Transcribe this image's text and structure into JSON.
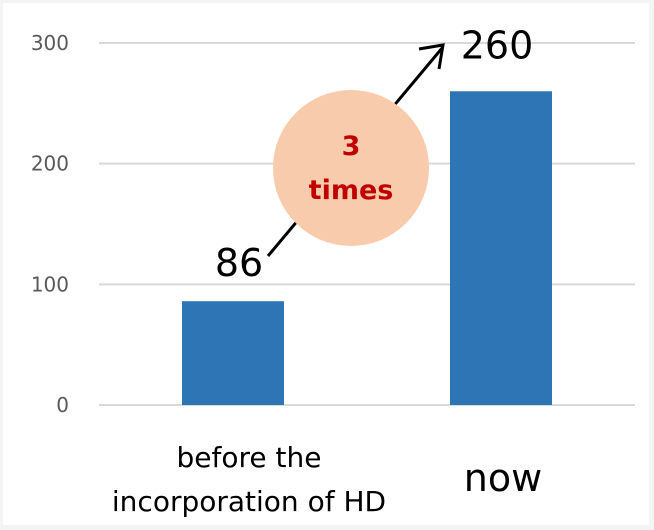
{
  "chart_data": {
    "type": "bar",
    "title": "",
    "xlabel": "",
    "ylabel": "",
    "categories": [
      "before the incorporation of HD",
      "now"
    ],
    "category_lines": [
      [
        "before the",
        "incorporation of HD"
      ],
      [
        "now"
      ]
    ],
    "values": [
      86,
      260
    ],
    "data_labels": [
      "86",
      "260"
    ],
    "ylim": [
      0,
      300
    ],
    "yticks": [
      0,
      100,
      200,
      300
    ],
    "ytick_labels": [
      "0",
      "100",
      "200",
      "300"
    ],
    "grid": true,
    "legend": "none",
    "annotation": {
      "text_line1": "3",
      "text_line2": "times",
      "text_color": "#c00000",
      "bubble_color": "#f8cbad"
    },
    "colors": {
      "bar": "#2e75b6",
      "grid": "#d9d9d9",
      "axis_text": "#595959",
      "label_text": "#000000"
    }
  }
}
